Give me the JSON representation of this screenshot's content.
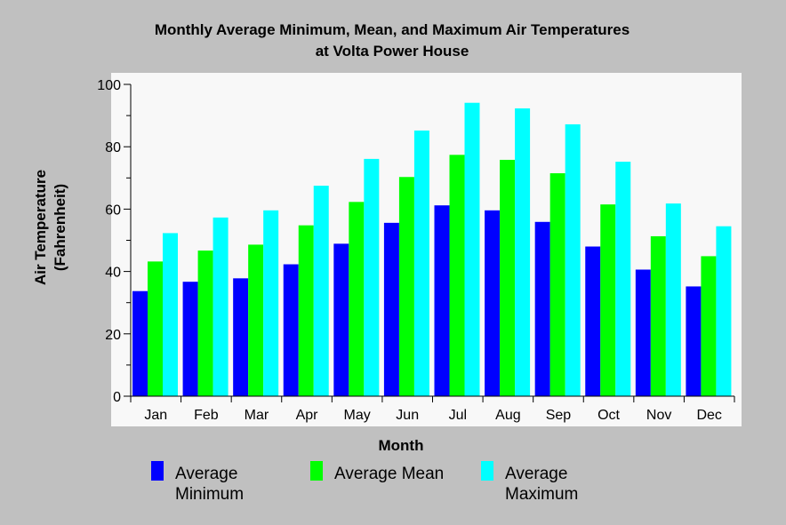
{
  "chart_data": {
    "type": "bar",
    "title": "Monthly Average Minimum, Mean, and Maximum Air Temperatures",
    "subtitle": "at Volta Power House",
    "xlabel": "Month",
    "ylabel": "Air Temperature",
    "ylabel_unit": "(Fahrenheit)",
    "ylim": [
      0,
      100
    ],
    "yticks": [
      0,
      20,
      40,
      60,
      80,
      100
    ],
    "grid": false,
    "legend_position": "bottom",
    "categories": [
      "Jan",
      "Feb",
      "Mar",
      "Apr",
      "May",
      "Jun",
      "Jul",
      "Aug",
      "Sep",
      "Oct",
      "Nov",
      "Dec"
    ],
    "series": [
      {
        "name": "Average Minimum",
        "legend_lines": [
          "Average",
          "Minimum"
        ],
        "color": "#0000ff",
        "values": [
          33.7,
          36.7,
          37.8,
          42.3,
          48.9,
          55.6,
          61.2,
          59.6,
          55.9,
          48.0,
          40.6,
          35.2
        ]
      },
      {
        "name": "Average Mean",
        "legend_lines": [
          "Average Mean"
        ],
        "color": "#00ff00",
        "values": [
          43.2,
          46.7,
          48.6,
          54.8,
          62.3,
          70.3,
          77.4,
          75.8,
          71.5,
          61.5,
          51.3,
          44.9
        ]
      },
      {
        "name": "Average Maximum",
        "legend_lines": [
          "Average",
          "Maximum"
        ],
        "color": "#00ffff",
        "values": [
          52.3,
          57.3,
          59.6,
          67.5,
          76.1,
          85.2,
          94.1,
          92.3,
          87.2,
          75.2,
          61.8,
          54.5
        ]
      }
    ]
  }
}
